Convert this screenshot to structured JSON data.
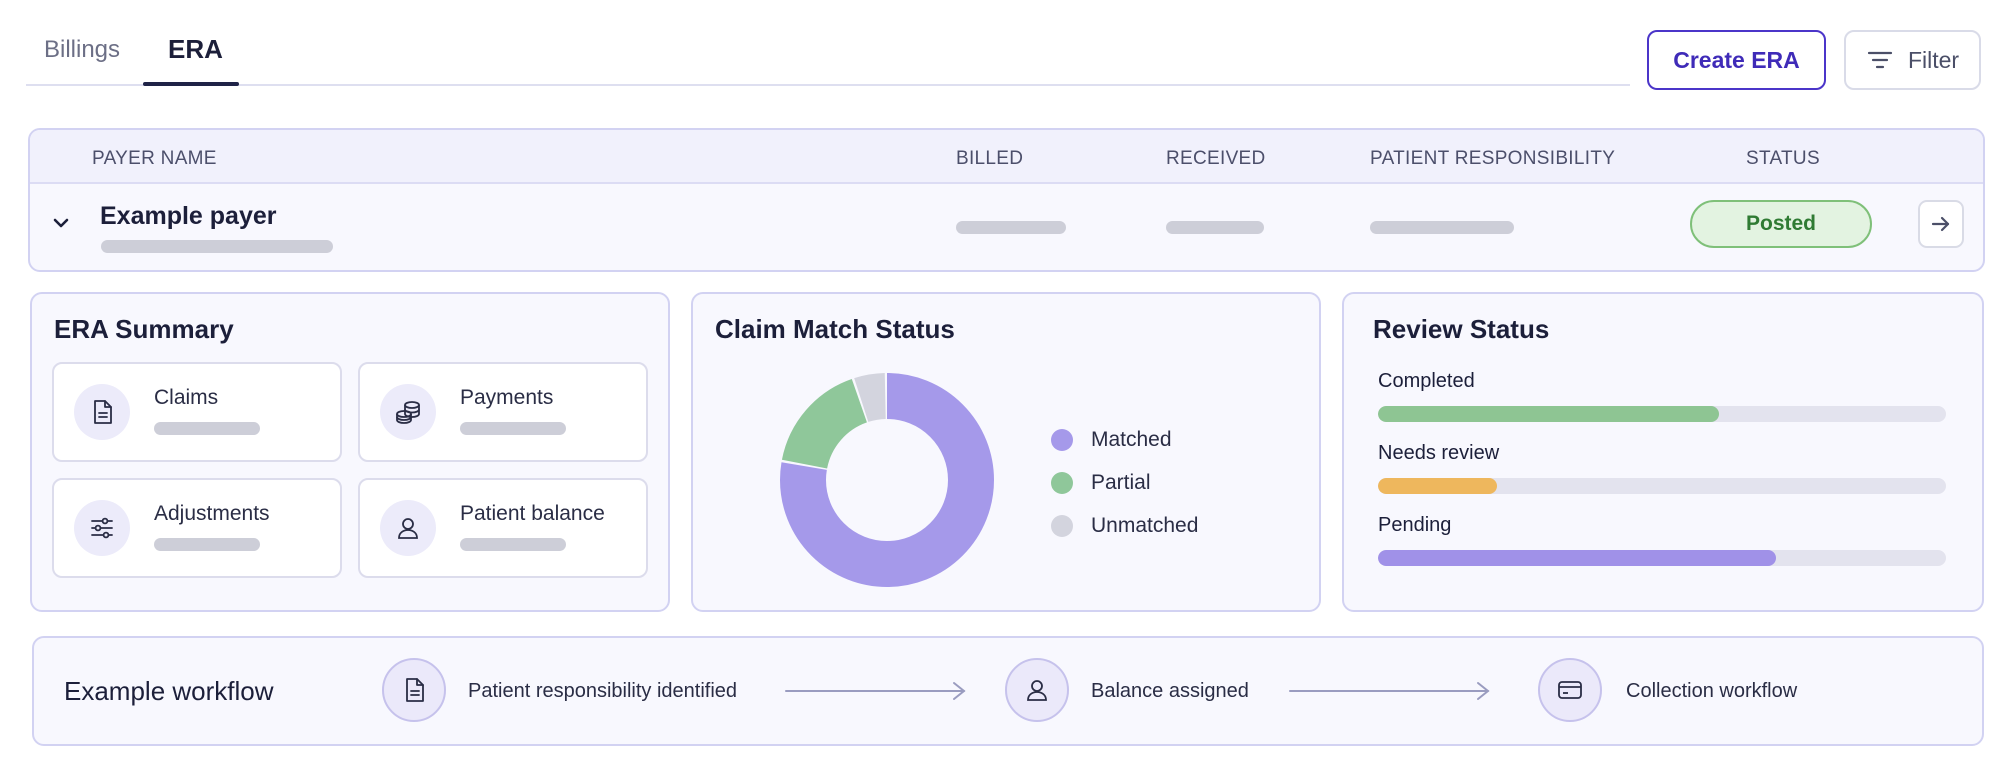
{
  "tabs": [
    {
      "label": "Billings",
      "active": false
    },
    {
      "label": "ERA",
      "active": true
    }
  ],
  "actions": {
    "create_label": "Create ERA",
    "filter_label": "Filter"
  },
  "colors": {
    "accent": "#4b35c9",
    "matched": "#a599ea",
    "partial": "#8fc79a",
    "unmatched": "#d3d4de",
    "completed": "#8ec593",
    "needs_review": "#eeb75d",
    "pending": "#a091e8",
    "posted_bg": "#e3f3e1",
    "posted_text": "#2f7b33"
  },
  "table": {
    "headers": {
      "payer": "PAYER NAME",
      "billed": "BILLED",
      "received": "RECEIVED",
      "patient": "PATIENT RESPONSIBILITY",
      "status": "STATUS"
    },
    "row": {
      "payer": "Example payer",
      "status": "Posted"
    }
  },
  "summary": {
    "title": "ERA Summary",
    "tiles": [
      {
        "label": "Claims",
        "icon": "document-icon"
      },
      {
        "label": "Payments",
        "icon": "coins-icon"
      },
      {
        "label": "Adjustments",
        "icon": "sliders-icon"
      },
      {
        "label": "Patient balance",
        "icon": "person-icon"
      }
    ]
  },
  "claim_match": {
    "title": "Claim Match Status",
    "legend": [
      "Matched",
      "Partial",
      "Unmatched"
    ]
  },
  "chart_data": {
    "type": "pie",
    "categories": [
      "Matched",
      "Partial",
      "Unmatched"
    ],
    "values": [
      78,
      17,
      5
    ],
    "donut": true
  },
  "review": {
    "title": "Review Status",
    "items": [
      {
        "label": "Completed",
        "progress": 0.6
      },
      {
        "label": "Needs review",
        "progress": 0.21
      },
      {
        "label": "Pending",
        "progress": 0.7
      }
    ]
  },
  "workflow": {
    "title": "Example workflow",
    "steps": [
      {
        "label": "Patient responsibility identified",
        "icon": "document-icon"
      },
      {
        "label": "Balance assigned",
        "icon": "person-icon"
      },
      {
        "label": "Collection workflow",
        "icon": "card-icon"
      }
    ]
  }
}
